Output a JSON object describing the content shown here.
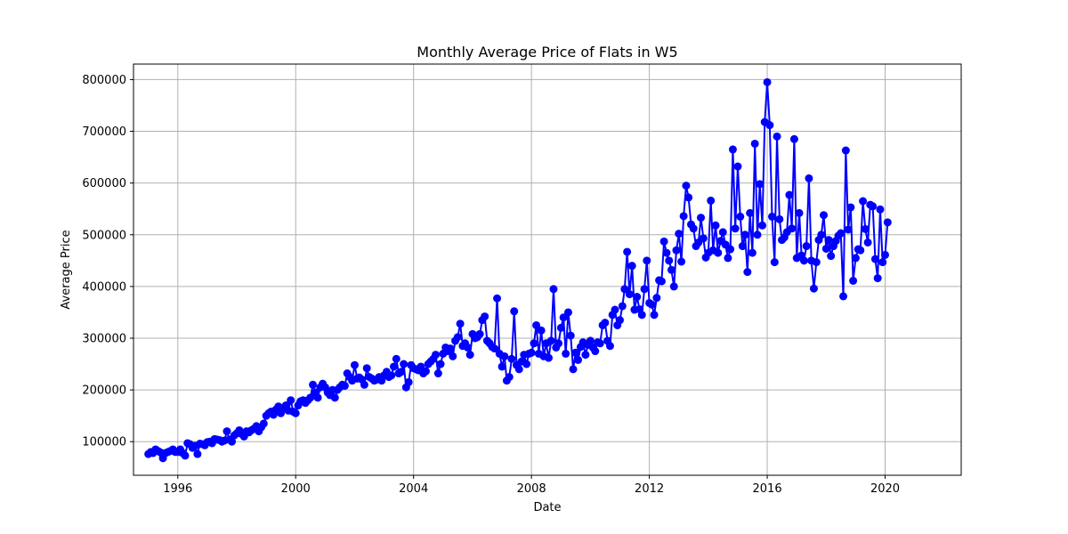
{
  "chart_data": {
    "type": "line",
    "title": "Monthly Average Price of Flats in W5",
    "xlabel": "Date",
    "ylabel": "Average Price",
    "xlim": [
      "1994-07-01",
      "2022-08-01"
    ],
    "ylim": [
      35000,
      830000
    ],
    "x_ticks": [
      "1996-01-01",
      "2000-01-01",
      "2004-01-01",
      "2008-01-01",
      "2012-01-01",
      "2016-01-01",
      "2020-01-01"
    ],
    "x_tick_labels": [
      "1996",
      "2000",
      "2004",
      "2008",
      "2012",
      "2016",
      "2020"
    ],
    "y_ticks": [
      100000,
      200000,
      300000,
      400000,
      500000,
      600000,
      700000,
      800000
    ],
    "y_tick_labels": [
      "100000",
      "200000",
      "300000",
      "400000",
      "500000",
      "600000",
      "700000",
      "800000"
    ],
    "grid": true,
    "series_color": "#0000ff",
    "marker": "circle",
    "start_month": "1995-01",
    "values": [
      76000,
      80000,
      78000,
      85000,
      82000,
      79000,
      68000,
      78000,
      80000,
      82000,
      85000,
      80000,
      80000,
      85000,
      78000,
      73000,
      97000,
      95000,
      88000,
      92000,
      76000,
      96000,
      95000,
      93000,
      99000,
      100000,
      97000,
      105000,
      104000,
      103000,
      100000,
      102000,
      120000,
      104000,
      100000,
      112000,
      116000,
      122000,
      115000,
      110000,
      120000,
      118000,
      122000,
      125000,
      130000,
      120000,
      128000,
      135000,
      150000,
      155000,
      158000,
      152000,
      162000,
      168000,
      155000,
      165000,
      170000,
      160000,
      180000,
      158000,
      155000,
      170000,
      178000,
      180000,
      175000,
      180000,
      185000,
      210000,
      195000,
      185000,
      205000,
      212000,
      205000,
      195000,
      190000,
      200000,
      185000,
      200000,
      205000,
      210000,
      208000,
      232000,
      225000,
      218000,
      248000,
      222000,
      224000,
      220000,
      210000,
      242000,
      225000,
      222000,
      218000,
      220000,
      225000,
      218000,
      228000,
      235000,
      225000,
      228000,
      245000,
      260000,
      232000,
      235000,
      250000,
      205000,
      215000,
      248000,
      242000,
      240000,
      238000,
      245000,
      232000,
      236000,
      250000,
      255000,
      260000,
      268000,
      232000,
      250000,
      270000,
      282000,
      275000,
      280000,
      265000,
      295000,
      302000,
      328000,
      285000,
      290000,
      282000,
      268000,
      308000,
      300000,
      302000,
      308000,
      335000,
      342000,
      295000,
      290000,
      283000,
      280000,
      377000,
      270000,
      245000,
      265000,
      218000,
      225000,
      260000,
      352000,
      248000,
      240000,
      255000,
      268000,
      250000,
      270000,
      272000,
      290000,
      325000,
      270000,
      315000,
      265000,
      290000,
      262000,
      295000,
      395000,
      282000,
      290000,
      320000,
      340000,
      270000,
      350000,
      305000,
      240000,
      272000,
      258000,
      283000,
      292000,
      268000,
      287000,
      295000,
      282000,
      275000,
      292000,
      290000,
      325000,
      330000,
      295000,
      285000,
      345000,
      355000,
      325000,
      335000,
      362000,
      395000,
      467000,
      385000,
      440000,
      355000,
      380000,
      356000,
      345000,
      395000,
      450000,
      368000,
      365000,
      345000,
      378000,
      412000,
      410000,
      487000,
      465000,
      450000,
      432000,
      400000,
      470000,
      502000,
      448000,
      536000,
      595000,
      572000,
      520000,
      512000,
      478000,
      485000,
      533000,
      493000,
      456000,
      465000,
      566000,
      470000,
      518000,
      465000,
      488000,
      505000,
      481000,
      455000,
      472000,
      665000,
      512000,
      632000,
      535000,
      478000,
      500000,
      428000,
      542000,
      465000,
      676000,
      500000,
      598000,
      518000,
      718000,
      795000,
      712000,
      535000,
      447000,
      690000,
      530000,
      490000,
      495000,
      505000,
      577000,
      512000,
      685000,
      455000,
      542000,
      460000,
      450000,
      478000,
      609000,
      450000,
      396000,
      447000,
      490000,
      500000,
      538000,
      473000,
      490000,
      459000,
      478000,
      488000,
      498000,
      503000,
      381000,
      663000,
      510000,
      553000,
      411000,
      455000,
      472000,
      470000,
      565000,
      511000,
      485000,
      558000,
      555000,
      453000,
      416000,
      549000,
      447000,
      461000,
      524000
    ]
  }
}
